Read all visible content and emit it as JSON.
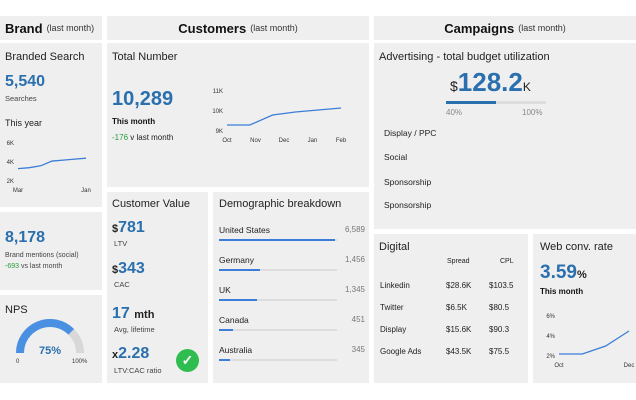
{
  "headers": {
    "brand": {
      "title": "Brand",
      "period": "(last month)"
    },
    "customers": {
      "title": "Customers",
      "period": "(last month)"
    },
    "campaigns": {
      "title": "Campaigns",
      "period": "(last month)"
    }
  },
  "brand": {
    "search_title": "Branded Search",
    "searches_value": "5,540",
    "searches_label": "Searches",
    "this_year_label": "This year",
    "mini_chart": {
      "type": "line",
      "x_ticks": [
        "Mar",
        "Jan"
      ],
      "y_ticks": [
        "6K",
        "4K",
        "2K"
      ],
      "ylim": [
        2000,
        6000
      ],
      "values": [
        3300,
        3400,
        3600,
        4100,
        4200,
        4300,
        4400
      ]
    },
    "mentions_value": "8,178",
    "mentions_label": "Brand mentions (social)",
    "mentions_delta": "-693",
    "mentions_delta_suffix": "vs last month",
    "nps_title": "NPS",
    "nps_value": "75%",
    "nps_fraction": 0.75,
    "nps_min": "0",
    "nps_max": "100%"
  },
  "customers": {
    "total_title": "Total Number",
    "total_value": "10,289",
    "total_caption": "This month",
    "total_delta": "-176",
    "total_delta_suffix": "v last month",
    "total_chart": {
      "type": "line",
      "x_ticks": [
        "Oct",
        "Nov",
        "Dec",
        "Jan",
        "Feb"
      ],
      "y_ticks": [
        "11K",
        "10K",
        "9K"
      ],
      "ylim": [
        9000,
        11000
      ],
      "values": [
        9300,
        9300,
        9800,
        9950,
        10050,
        10150
      ]
    },
    "value_title": "Customer Value",
    "ltv_prefix": "$",
    "ltv_value": "781",
    "ltv_label": "LTV",
    "cac_prefix": "$",
    "cac_value": "343",
    "cac_label": "CAC",
    "lifetime_value": "17",
    "lifetime_unit": "mth",
    "lifetime_label": "Avg, lifetime",
    "ratio_prefix": "x",
    "ratio_value": "2.28",
    "ratio_label": "LTV:CAC ratio",
    "demo_title": "Demographic breakdown",
    "demographics": [
      {
        "country": "United States",
        "value": "6,589",
        "fraction": 0.98
      },
      {
        "country": "Germany",
        "value": "1,456",
        "fraction": 0.35
      },
      {
        "country": "UK",
        "value": "1,345",
        "fraction": 0.32
      },
      {
        "country": "Canada",
        "value": "451",
        "fraction": 0.12
      },
      {
        "country": "Australia",
        "value": "345",
        "fraction": 0.09
      }
    ]
  },
  "campaigns": {
    "ad_title": "Advertising - total budget utilization",
    "ad_prefix": "$",
    "ad_value": "128.2",
    "ad_suffix": "K",
    "ad_fraction": 0.5,
    "ad_min": "40%",
    "ad_max": "100%",
    "channels": [
      "Display / PPC",
      "Social",
      "Sponsorship",
      "Sponsorship"
    ],
    "digital_title": "Digital",
    "digital_cols": [
      "Spread",
      "CPL"
    ],
    "digital_rows": [
      {
        "name": "Linkedin",
        "spread": "$28.6K",
        "cpl": "$103.5"
      },
      {
        "name": "Twitter",
        "spread": "$6.5K",
        "cpl": "$80.5"
      },
      {
        "name": "Display",
        "spread": "$15.6K",
        "cpl": "$90.3"
      },
      {
        "name": "Google Ads",
        "spread": "$43.5K",
        "cpl": "$75.5"
      }
    ],
    "webconv_title": "Web conv. rate",
    "webconv_value": "3.59",
    "webconv_unit": "%",
    "webconv_caption": "This month",
    "webconv_chart": {
      "type": "line",
      "x_ticks": [
        "Oct",
        "Dec"
      ],
      "y_ticks": [
        "6%",
        "4%",
        "2%"
      ],
      "ylim": [
        2,
        6
      ],
      "values": [
        2.2,
        2.2,
        3.0,
        4.5
      ]
    }
  },
  "colors": {
    "accent": "#2a6fae",
    "panel": "#efefef",
    "positive": "#2a9d3a",
    "gauge": "#4a90e2"
  }
}
